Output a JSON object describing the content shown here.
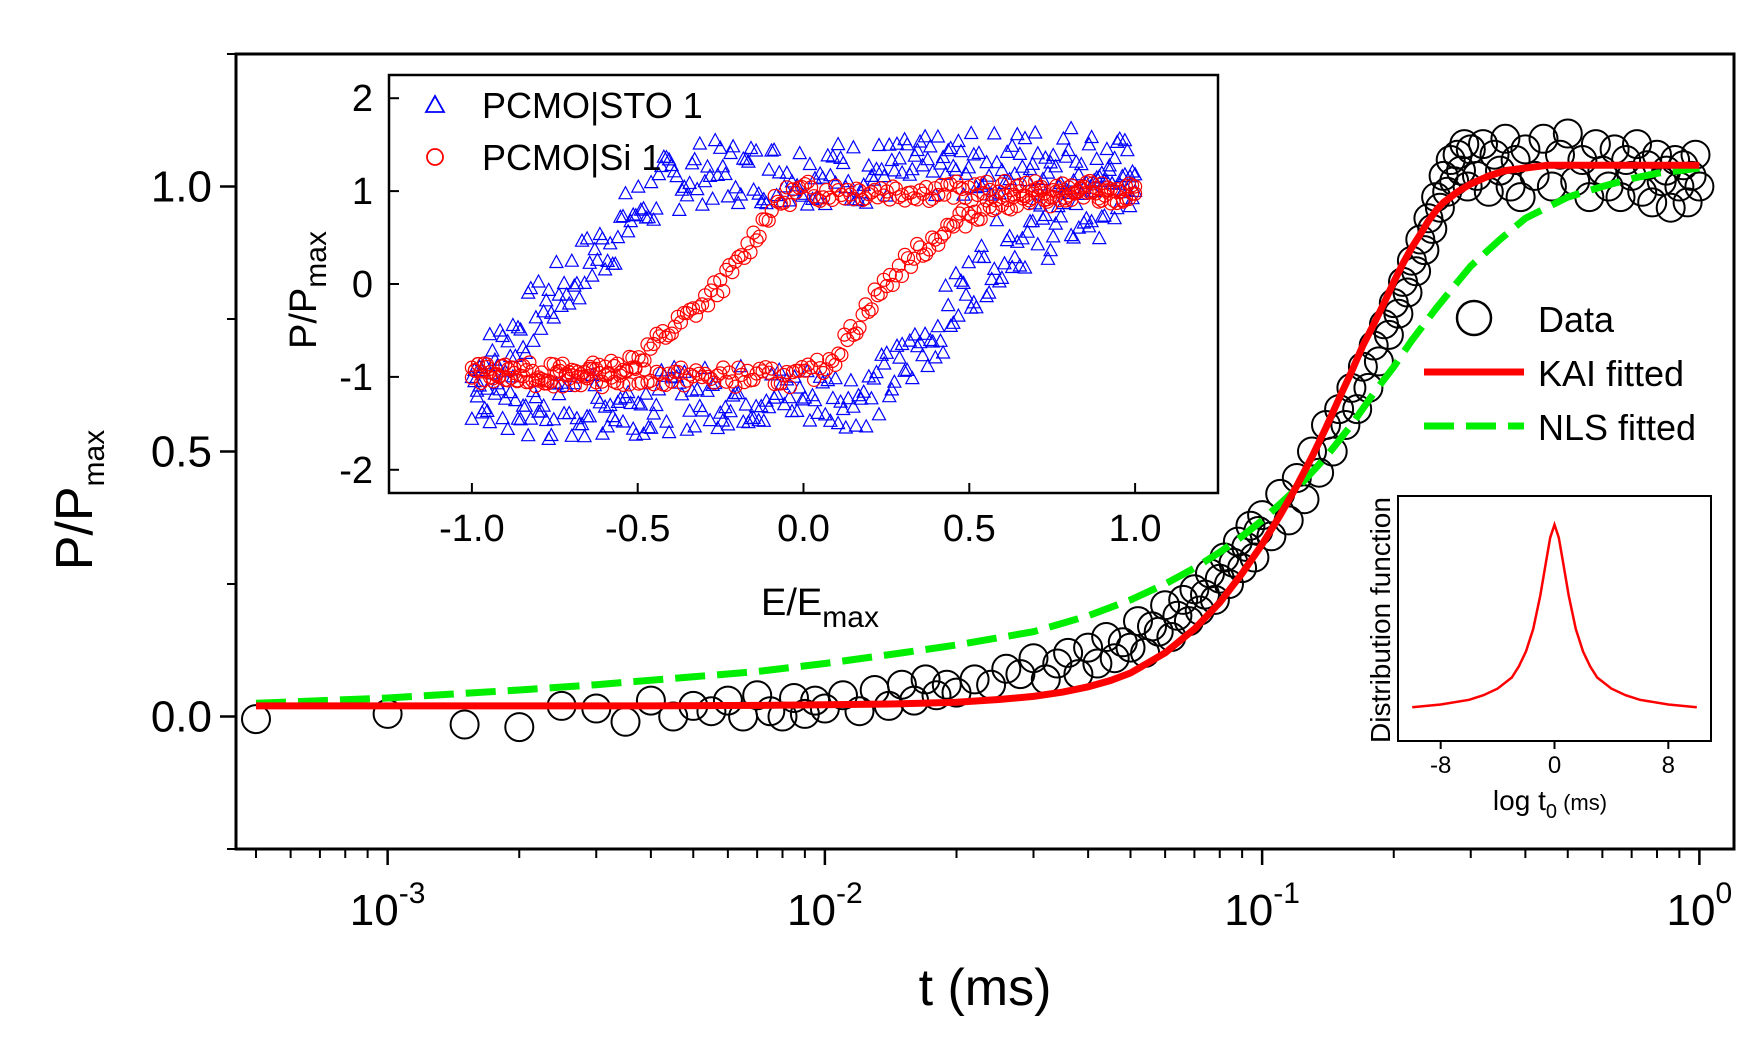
{
  "chart_data": [
    {
      "type": "scatter",
      "name": "main-polarization-switching",
      "xscale": "log",
      "xlim": [
        0.00045,
        1.2
      ],
      "ylim": [
        -0.25,
        1.25
      ],
      "xlabel": "t (ms)",
      "ylabel": "P/P",
      "ylabel_sub": "max",
      "x_ticks": [
        {
          "value": 0.001,
          "base": "10",
          "exp": "-3"
        },
        {
          "value": 0.01,
          "base": "10",
          "exp": "-2"
        },
        {
          "value": 0.1,
          "base": "10",
          "exp": "-1"
        },
        {
          "value": 1,
          "base": "10",
          "exp": "0"
        }
      ],
      "y_ticks": [
        {
          "value": 0.0,
          "label": "0.0"
        },
        {
          "value": 0.5,
          "label": "0.5"
        },
        {
          "value": 1.0,
          "label": "1.0"
        }
      ],
      "legend": {
        "position": "right",
        "entries": [
          "Data",
          "KAI fitted",
          "NLS fitted"
        ]
      },
      "series": [
        {
          "name": "Data",
          "marker": "open-circle",
          "color": "#000000",
          "x": [
            0.0005,
            0.001,
            0.0015,
            0.002,
            0.0025,
            0.003,
            0.0035,
            0.004,
            0.0045,
            0.005,
            0.0055,
            0.006,
            0.0065,
            0.007,
            0.0075,
            0.008,
            0.0085,
            0.009,
            0.0095,
            0.01,
            0.011,
            0.012,
            0.013,
            0.014,
            0.015,
            0.016,
            0.017,
            0.018,
            0.019,
            0.02,
            0.022,
            0.024,
            0.026,
            0.028,
            0.03,
            0.032,
            0.034,
            0.036,
            0.038,
            0.04,
            0.042,
            0.044,
            0.046,
            0.048,
            0.05,
            0.052,
            0.054,
            0.056,
            0.058,
            0.06,
            0.062,
            0.064,
            0.066,
            0.068,
            0.07,
            0.072,
            0.074,
            0.076,
            0.078,
            0.08,
            0.082,
            0.084,
            0.086,
            0.088,
            0.09,
            0.092,
            0.094,
            0.096,
            0.098,
            0.1,
            0.105,
            0.11,
            0.115,
            0.12,
            0.125,
            0.13,
            0.135,
            0.14,
            0.145,
            0.15,
            0.155,
            0.16,
            0.165,
            0.17,
            0.175,
            0.18,
            0.185,
            0.19,
            0.195,
            0.2,
            0.205,
            0.21,
            0.215,
            0.22,
            0.225,
            0.23,
            0.235,
            0.24,
            0.245,
            0.25,
            0.255,
            0.26,
            0.265,
            0.27,
            0.275,
            0.28,
            0.285,
            0.29,
            0.295,
            0.3,
            0.31,
            0.32,
            0.33,
            0.34,
            0.35,
            0.36,
            0.37,
            0.38,
            0.39,
            0.4,
            0.42,
            0.44,
            0.46,
            0.48,
            0.5,
            0.52,
            0.54,
            0.56,
            0.58,
            0.6,
            0.62,
            0.64,
            0.66,
            0.68,
            0.7,
            0.72,
            0.74,
            0.76,
            0.78,
            0.8,
            0.82,
            0.84,
            0.86,
            0.88,
            0.9,
            0.92,
            0.94,
            0.96,
            0.98,
            1.0
          ],
          "y": [
            -0.005,
            0.005,
            -0.015,
            -0.02,
            0.02,
            0.015,
            -0.01,
            0.03,
            0.0,
            0.02,
            0.01,
            0.03,
            0.0,
            0.04,
            0.01,
            0.0,
            0.035,
            0.005,
            0.03,
            0.015,
            0.04,
            0.01,
            0.05,
            0.02,
            0.06,
            0.03,
            0.07,
            0.04,
            0.06,
            0.045,
            0.07,
            0.06,
            0.09,
            0.08,
            0.11,
            0.07,
            0.1,
            0.12,
            0.08,
            0.13,
            0.1,
            0.15,
            0.11,
            0.14,
            0.13,
            0.18,
            0.12,
            0.17,
            0.16,
            0.21,
            0.15,
            0.19,
            0.22,
            0.18,
            0.24,
            0.2,
            0.23,
            0.27,
            0.22,
            0.26,
            0.3,
            0.25,
            0.29,
            0.33,
            0.28,
            0.32,
            0.36,
            0.3,
            0.35,
            0.38,
            0.34,
            0.42,
            0.37,
            0.45,
            0.41,
            0.5,
            0.46,
            0.55,
            0.5,
            0.58,
            0.55,
            0.62,
            0.58,
            0.66,
            0.62,
            0.7,
            0.67,
            0.74,
            0.72,
            0.78,
            0.76,
            0.82,
            0.8,
            0.86,
            0.84,
            0.9,
            0.88,
            0.94,
            0.92,
            0.98,
            0.96,
            1.02,
            0.99,
            1.05,
            1.01,
            1.06,
            1.03,
            1.08,
            1.0,
            1.07,
            1.02,
            1.08,
            0.99,
            1.06,
            1.03,
            1.09,
            1.0,
            1.05,
            0.98,
            1.07,
            1.02,
            1.09,
            1.0,
            1.06,
            1.1,
            1.01,
            1.05,
            0.98,
            1.08,
            1.03,
            1.0,
            1.07,
            0.98,
            1.05,
            1.02,
            1.08,
            0.99,
            1.04,
            0.97,
            1.06,
            1.01,
            1.03,
            0.96,
            1.05,
            1.0,
            1.04,
            0.97,
            1.02,
            1.06,
            1.0
          ]
        },
        {
          "name": "KAI fitted",
          "line": "solid",
          "color": "#ff0000",
          "x": [
            0.0005,
            0.001,
            0.002,
            0.004,
            0.007,
            0.01,
            0.015,
            0.02,
            0.025,
            0.03,
            0.035,
            0.04,
            0.045,
            0.05,
            0.06,
            0.07,
            0.08,
            0.09,
            0.1,
            0.11,
            0.12,
            0.13,
            0.14,
            0.15,
            0.16,
            0.17,
            0.18,
            0.19,
            0.2,
            0.21,
            0.22,
            0.23,
            0.24,
            0.25,
            0.26,
            0.28,
            0.3,
            0.33,
            0.36,
            0.4,
            0.45,
            0.5,
            0.6,
            0.7,
            0.8,
            0.9,
            1.0
          ],
          "y": [
            0.02,
            0.02,
            0.02,
            0.02,
            0.021,
            0.022,
            0.024,
            0.027,
            0.032,
            0.038,
            0.046,
            0.056,
            0.068,
            0.082,
            0.12,
            0.165,
            0.215,
            0.27,
            0.325,
            0.38,
            0.435,
            0.49,
            0.545,
            0.6,
            0.65,
            0.7,
            0.74,
            0.78,
            0.82,
            0.855,
            0.885,
            0.91,
            0.935,
            0.955,
            0.97,
            0.99,
            1.005,
            1.02,
            1.03,
            1.035,
            1.04,
            1.04,
            1.04,
            1.04,
            1.04,
            1.04,
            1.04
          ]
        },
        {
          "name": "NLS fitted",
          "line": "dashed",
          "color": "#00ee00",
          "x": [
            0.0005,
            0.001,
            0.002,
            0.003,
            0.005,
            0.007,
            0.01,
            0.015,
            0.02,
            0.03,
            0.04,
            0.05,
            0.06,
            0.07,
            0.08,
            0.09,
            0.1,
            0.12,
            0.14,
            0.16,
            0.18,
            0.2,
            0.22,
            0.25,
            0.28,
            0.3,
            0.35,
            0.4,
            0.5,
            0.6,
            0.7,
            0.8,
            0.9,
            1.0
          ],
          "y": [
            0.025,
            0.035,
            0.05,
            0.06,
            0.075,
            0.085,
            0.1,
            0.12,
            0.135,
            0.16,
            0.19,
            0.22,
            0.25,
            0.28,
            0.31,
            0.34,
            0.37,
            0.43,
            0.49,
            0.55,
            0.61,
            0.66,
            0.71,
            0.77,
            0.82,
            0.85,
            0.9,
            0.94,
            0.98,
            1.0,
            1.015,
            1.025,
            1.03,
            1.035
          ]
        }
      ]
    },
    {
      "type": "scatter",
      "name": "inset-hysteresis",
      "xlim": [
        -1.25,
        1.25
      ],
      "ylim": [
        -2.25,
        2.25
      ],
      "xlabel": "E/E",
      "xlabel_sub": "max",
      "ylabel": "P/P",
      "ylabel_sub": "max",
      "x_ticks": [
        {
          "value": -1.0,
          "label": "-1.0"
        },
        {
          "value": -0.5,
          "label": "-0.5"
        },
        {
          "value": 0.0,
          "label": "0.0"
        },
        {
          "value": 0.5,
          "label": "0.5"
        },
        {
          "value": 1.0,
          "label": "1.0"
        }
      ],
      "y_ticks": [
        {
          "value": -2,
          "label": "-2"
        },
        {
          "value": -1,
          "label": "-1"
        },
        {
          "value": 0,
          "label": "0"
        },
        {
          "value": 1,
          "label": "1"
        },
        {
          "value": 2,
          "label": "2"
        }
      ],
      "legend": {
        "position": "top-left",
        "entries": [
          "PCMO|STO 1",
          "PCMO|Si 1"
        ]
      },
      "series": [
        {
          "name": "PCMO|STO 1",
          "marker": "open-triangle",
          "color": "#0000ff",
          "upper": {
            "x": [
              -1.0,
              -0.8,
              -0.6,
              -0.5,
              -0.4,
              -0.3,
              -0.2,
              -0.1,
              0.0,
              0.2,
              0.4,
              0.6,
              0.8,
              1.0
            ],
            "y": [
              -1.0,
              -0.3,
              0.4,
              0.8,
              1.1,
              1.2,
              1.2,
              1.2,
              1.2,
              1.2,
              1.25,
              1.3,
              1.4,
              1.2
            ]
          },
          "lower": {
            "x": [
              1.0,
              0.8,
              0.6,
              0.5,
              0.4,
              0.3,
              0.2,
              0.1,
              0.0,
              -0.2,
              -0.4,
              -0.6,
              -0.8,
              -1.0
            ],
            "y": [
              1.0,
              0.7,
              0.4,
              0.0,
              -0.5,
              -0.9,
              -1.2,
              -1.2,
              -1.2,
              -1.2,
              -1.25,
              -1.3,
              -1.4,
              -1.2
            ]
          }
        },
        {
          "name": "PCMO|Si 1",
          "marker": "open-circle",
          "color": "#ff0000",
          "upper": {
            "x": [
              -1.0,
              -0.8,
              -0.6,
              -0.5,
              -0.4,
              -0.3,
              -0.25,
              -0.2,
              -0.15,
              -0.1,
              -0.05,
              0.0,
              0.1,
              0.2,
              0.4,
              0.6,
              0.8,
              1.0
            ],
            "y": [
              -0.95,
              -0.95,
              -0.95,
              -0.8,
              -0.5,
              -0.2,
              0.0,
              0.2,
              0.5,
              0.8,
              0.95,
              1.0,
              1.0,
              1.0,
              1.0,
              1.0,
              1.0,
              1.0
            ]
          },
          "lower": {
            "x": [
              1.0,
              0.8,
              0.6,
              0.5,
              0.4,
              0.3,
              0.25,
              0.2,
              0.15,
              0.1,
              0.05,
              0.0,
              -0.2,
              -0.4,
              -0.6,
              -0.8,
              -1.0
            ],
            "y": [
              0.95,
              0.95,
              0.9,
              0.75,
              0.5,
              0.2,
              0.0,
              -0.2,
              -0.5,
              -0.75,
              -0.9,
              -1.0,
              -1.0,
              -1.0,
              -1.0,
              -1.0,
              -0.95
            ]
          }
        }
      ]
    },
    {
      "type": "line",
      "name": "inset-distribution",
      "xlim": [
        -11,
        11
      ],
      "ylim": [
        0,
        1.1
      ],
      "xlabel": "log t",
      "xlabel_sub": "0",
      "xlabel_unit": " (ms)",
      "ylabel": "Distribution function",
      "x_ticks": [
        {
          "value": -8,
          "label": "-8"
        },
        {
          "value": 0,
          "label": "0"
        },
        {
          "value": 8,
          "label": "8"
        }
      ],
      "series": [
        {
          "name": "distribution",
          "color": "#ff0000",
          "x": [
            -10,
            -8,
            -6,
            -5,
            -4,
            -3,
            -2.5,
            -2,
            -1.5,
            -1,
            -0.6,
            -0.3,
            0,
            0.3,
            0.6,
            1,
            1.5,
            2,
            2.5,
            3,
            4,
            5,
            6,
            8,
            10
          ],
          "y": [
            0.02,
            0.035,
            0.06,
            0.085,
            0.12,
            0.18,
            0.24,
            0.32,
            0.44,
            0.62,
            0.8,
            0.93,
            1.0,
            0.93,
            0.8,
            0.62,
            0.44,
            0.32,
            0.24,
            0.18,
            0.12,
            0.085,
            0.06,
            0.035,
            0.02
          ]
        }
      ]
    }
  ]
}
